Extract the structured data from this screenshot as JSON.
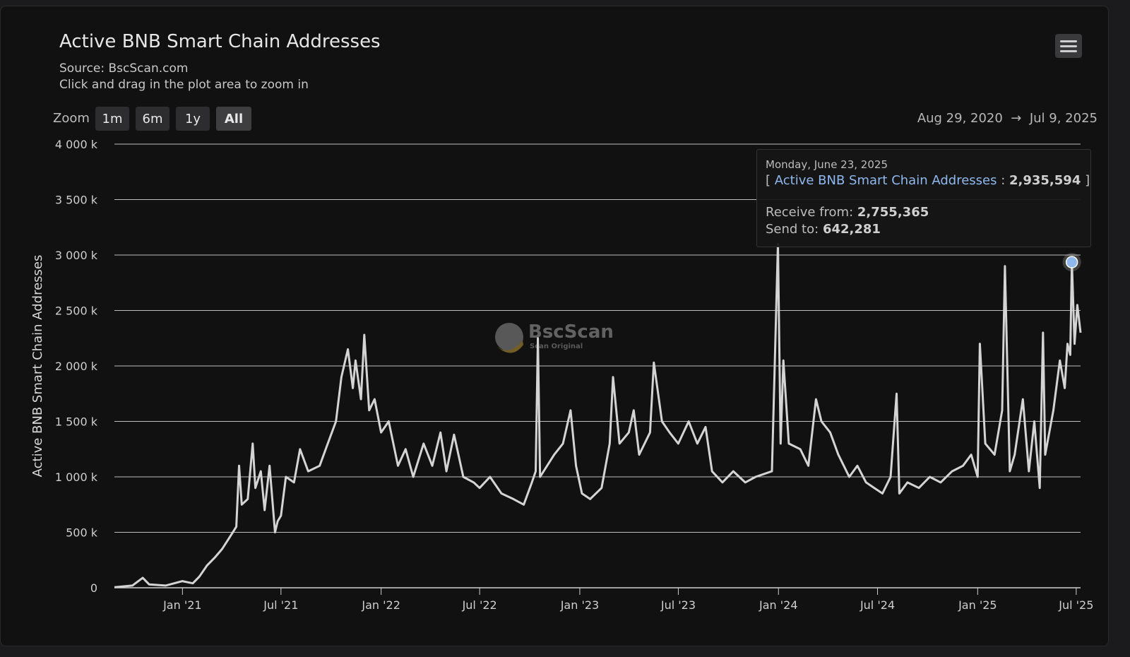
{
  "header": {
    "title": "Active BNB Smart Chain Addresses",
    "source": "Source: BscScan.com",
    "hint": "Click and drag in the plot area to zoom in",
    "menu_icon": "hamburger-menu-icon"
  },
  "zoom": {
    "label": "Zoom",
    "buttons": [
      "1m",
      "6m",
      "1y",
      "All"
    ],
    "selected": "All"
  },
  "range": {
    "from": "Aug 29, 2020",
    "arrow": "→",
    "to": "Jul 9, 2025"
  },
  "watermark": {
    "brand": "BscScan",
    "tagline": "Scan Original"
  },
  "tooltip": {
    "date": "Monday, June 23, 2025",
    "series": "Active BNB Smart Chain Addresses",
    "value": "2,935,594",
    "receive_label": "Receive from:",
    "receive": "2,755,365",
    "send_label": "Send to:",
    "send": "642,281"
  },
  "colors": {
    "line": "#d4d4d4",
    "highlight": "#8fb8ee",
    "background": "#111112",
    "grid": "#d0d0d0"
  },
  "chart_data": {
    "type": "line",
    "title": "Active BNB Smart Chain Addresses",
    "ylabel": "Active BNB Smart Chain Addresses",
    "xlabel": "",
    "y_unit": "thousands",
    "ylim": [
      0,
      4000
    ],
    "xlim": [
      "2020-08-29",
      "2025-07-09"
    ],
    "grid": true,
    "yticks": [
      "0",
      "500 k",
      "1 000 k",
      "1 500 k",
      "2 000 k",
      "2 500 k",
      "3 000 k",
      "3 500 k",
      "4 000 k"
    ],
    "xticks": [
      [
        "2021-01-01",
        "Jan '21"
      ],
      [
        "2021-07-01",
        "Jul '21"
      ],
      [
        "2022-01-01",
        "Jan '22"
      ],
      [
        "2022-07-01",
        "Jul '22"
      ],
      [
        "2023-01-01",
        "Jan '23"
      ],
      [
        "2023-07-01",
        "Jul '23"
      ],
      [
        "2024-01-01",
        "Jan '24"
      ],
      [
        "2024-07-01",
        "Jul '24"
      ],
      [
        "2025-01-01",
        "Jan '25"
      ],
      [
        "2025-07-01",
        "Jul '25"
      ]
    ],
    "highlight": [
      "2025-06-23",
      2935.594
    ],
    "points": [
      [
        "2020-08-29",
        5
      ],
      [
        "2020-10-01",
        20
      ],
      [
        "2020-10-20",
        90
      ],
      [
        "2020-11-01",
        30
      ],
      [
        "2020-12-01",
        20
      ],
      [
        "2021-01-01",
        60
      ],
      [
        "2021-01-20",
        40
      ],
      [
        "2021-02-01",
        100
      ],
      [
        "2021-02-15",
        200
      ],
      [
        "2021-03-01",
        270
      ],
      [
        "2021-03-15",
        350
      ],
      [
        "2021-04-01",
        480
      ],
      [
        "2021-04-10",
        550
      ],
      [
        "2021-04-15",
        1100
      ],
      [
        "2021-04-20",
        750
      ],
      [
        "2021-05-01",
        800
      ],
      [
        "2021-05-10",
        1300
      ],
      [
        "2021-05-15",
        900
      ],
      [
        "2021-05-25",
        1050
      ],
      [
        "2021-06-01",
        700
      ],
      [
        "2021-06-10",
        1100
      ],
      [
        "2021-06-20",
        500
      ],
      [
        "2021-06-25",
        600
      ],
      [
        "2021-07-01",
        650
      ],
      [
        "2021-07-10",
        1000
      ],
      [
        "2021-07-25",
        950
      ],
      [
        "2021-08-05",
        1250
      ],
      [
        "2021-08-20",
        1050
      ],
      [
        "2021-09-10",
        1100
      ],
      [
        "2021-09-25",
        1300
      ],
      [
        "2021-10-10",
        1500
      ],
      [
        "2021-10-20",
        1900
      ],
      [
        "2021-11-01",
        2150
      ],
      [
        "2021-11-10",
        1800
      ],
      [
        "2021-11-15",
        2050
      ],
      [
        "2021-11-25",
        1700
      ],
      [
        "2021-12-01",
        2280
      ],
      [
        "2021-12-10",
        1600
      ],
      [
        "2021-12-20",
        1700
      ],
      [
        "2022-01-01",
        1400
      ],
      [
        "2022-01-15",
        1500
      ],
      [
        "2022-02-01",
        1100
      ],
      [
        "2022-02-15",
        1250
      ],
      [
        "2022-03-01",
        1000
      ],
      [
        "2022-03-20",
        1300
      ],
      [
        "2022-04-05",
        1100
      ],
      [
        "2022-04-20",
        1400
      ],
      [
        "2022-05-01",
        1050
      ],
      [
        "2022-05-15",
        1380
      ],
      [
        "2022-06-01",
        1000
      ],
      [
        "2022-06-20",
        950
      ],
      [
        "2022-07-01",
        900
      ],
      [
        "2022-07-20",
        1000
      ],
      [
        "2022-08-10",
        850
      ],
      [
        "2022-09-01",
        800
      ],
      [
        "2022-09-20",
        750
      ],
      [
        "2022-10-05",
        950
      ],
      [
        "2022-10-12",
        1050
      ],
      [
        "2022-10-16",
        2250
      ],
      [
        "2022-10-20",
        1000
      ],
      [
        "2022-11-15",
        1200
      ],
      [
        "2022-12-01",
        1300
      ],
      [
        "2022-12-15",
        1600
      ],
      [
        "2022-12-25",
        1100
      ],
      [
        "2023-01-05",
        850
      ],
      [
        "2023-01-20",
        800
      ],
      [
        "2023-02-10",
        900
      ],
      [
        "2023-02-25",
        1300
      ],
      [
        "2023-03-03",
        1900
      ],
      [
        "2023-03-15",
        1300
      ],
      [
        "2023-04-01",
        1400
      ],
      [
        "2023-04-10",
        1600
      ],
      [
        "2023-04-20",
        1200
      ],
      [
        "2023-05-10",
        1400
      ],
      [
        "2023-05-17",
        2030
      ],
      [
        "2023-06-01",
        1500
      ],
      [
        "2023-06-15",
        1400
      ],
      [
        "2023-07-01",
        1300
      ],
      [
        "2023-07-20",
        1500
      ],
      [
        "2023-08-05",
        1300
      ],
      [
        "2023-08-20",
        1450
      ],
      [
        "2023-09-01",
        1050
      ],
      [
        "2023-09-20",
        950
      ],
      [
        "2023-10-10",
        1050
      ],
      [
        "2023-11-01",
        950
      ],
      [
        "2023-11-20",
        1000
      ],
      [
        "2023-12-20",
        1050
      ],
      [
        "2023-12-31",
        3100
      ],
      [
        "2024-01-05",
        1300
      ],
      [
        "2024-01-10",
        2050
      ],
      [
        "2024-01-20",
        1300
      ],
      [
        "2024-02-10",
        1250
      ],
      [
        "2024-02-25",
        1100
      ],
      [
        "2024-03-10",
        1700
      ],
      [
        "2024-03-20",
        1500
      ],
      [
        "2024-04-05",
        1400
      ],
      [
        "2024-04-20",
        1200
      ],
      [
        "2024-05-10",
        1000
      ],
      [
        "2024-05-25",
        1100
      ],
      [
        "2024-06-10",
        950
      ],
      [
        "2024-06-25",
        900
      ],
      [
        "2024-07-10",
        850
      ],
      [
        "2024-07-25",
        1000
      ],
      [
        "2024-08-05",
        1750
      ],
      [
        "2024-08-10",
        850
      ],
      [
        "2024-08-25",
        950
      ],
      [
        "2024-09-15",
        900
      ],
      [
        "2024-10-05",
        1000
      ],
      [
        "2024-10-25",
        950
      ],
      [
        "2024-11-15",
        1050
      ],
      [
        "2024-12-05",
        1100
      ],
      [
        "2024-12-20",
        1200
      ],
      [
        "2025-01-01",
        1000
      ],
      [
        "2025-01-05",
        2200
      ],
      [
        "2025-01-15",
        1300
      ],
      [
        "2025-02-01",
        1200
      ],
      [
        "2025-02-15",
        1600
      ],
      [
        "2025-02-20",
        2900
      ],
      [
        "2025-03-01",
        1050
      ],
      [
        "2025-03-10",
        1200
      ],
      [
        "2025-03-25",
        1700
      ],
      [
        "2025-04-05",
        1050
      ],
      [
        "2025-04-15",
        1500
      ],
      [
        "2025-04-25",
        900
      ],
      [
        "2025-05-01",
        2300
      ],
      [
        "2025-05-05",
        1200
      ],
      [
        "2025-05-20",
        1600
      ],
      [
        "2025-06-01",
        2050
      ],
      [
        "2025-06-10",
        1800
      ],
      [
        "2025-06-15",
        2200
      ],
      [
        "2025-06-20",
        2100
      ],
      [
        "2025-06-23",
        2935.594
      ],
      [
        "2025-06-28",
        2200
      ],
      [
        "2025-07-03",
        2550
      ],
      [
        "2025-07-09",
        2300
      ]
    ]
  }
}
